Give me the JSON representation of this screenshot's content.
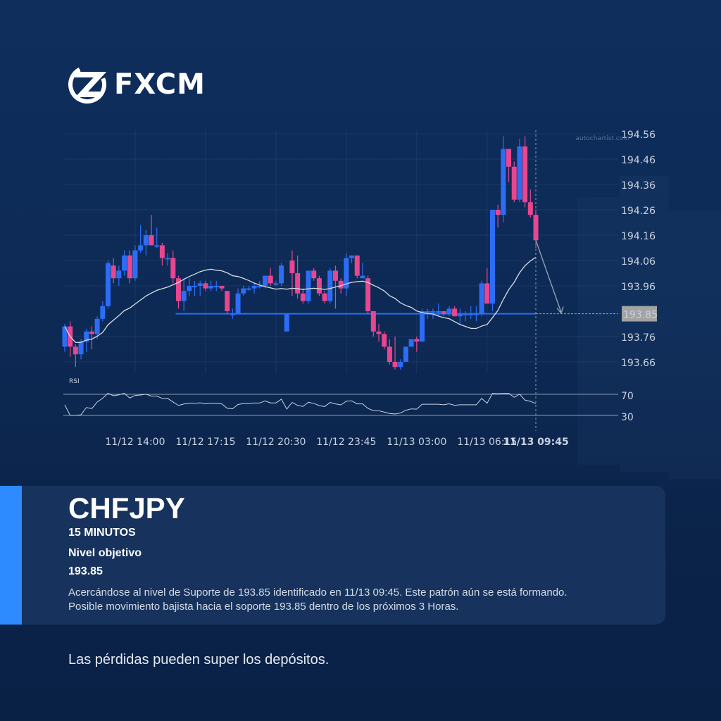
{
  "brand": {
    "name": "FXCM",
    "watermark": "autochartist.com"
  },
  "colors": {
    "bull": "#2d6df6",
    "bear": "#e8468f",
    "support": "#2d6df6",
    "accent": "#2e8bff",
    "ma": "#d8dde6"
  },
  "chart_data": {
    "type": "candlestick",
    "symbol": "CHFJPY",
    "interval": "15 MINUTOS",
    "y_ticks": [
      "194.56",
      "194.46",
      "194.36",
      "194.26",
      "194.16",
      "194.06",
      "193.96",
      "193.76",
      "193.66"
    ],
    "ylim": [
      193.6,
      194.6
    ],
    "x_labels": [
      "11/12 14:00",
      "11/12 17:15",
      "11/12 20:30",
      "11/12 23:45",
      "11/13 03:00",
      "11/13 06:15",
      "11/13 09:45"
    ],
    "x_label_candle_index": [
      13,
      26,
      39,
      52,
      65,
      78,
      87
    ],
    "grid": true,
    "support_level": 193.85,
    "support_label": "193.85",
    "forecast_target": 193.85,
    "indicator_label": "RSI",
    "rsi_levels": [
      "70",
      "30"
    ],
    "candles_ohlc": [
      [
        193.72,
        193.81,
        193.7,
        193.8
      ],
      [
        193.8,
        193.82,
        193.68,
        193.72
      ],
      [
        193.72,
        193.73,
        193.64,
        193.69
      ],
      [
        193.69,
        193.75,
        193.67,
        193.74
      ],
      [
        193.74,
        193.79,
        193.7,
        193.78
      ],
      [
        193.78,
        193.8,
        193.71,
        193.77
      ],
      [
        193.77,
        193.84,
        193.75,
        193.83
      ],
      [
        193.83,
        193.9,
        193.82,
        193.88
      ],
      [
        193.88,
        194.06,
        193.87,
        194.05
      ],
      [
        194.04,
        194.07,
        193.97,
        193.99
      ],
      [
        193.99,
        194.04,
        193.96,
        194.02
      ],
      [
        194.02,
        194.1,
        194.0,
        194.08
      ],
      [
        194.08,
        194.1,
        193.97,
        193.99
      ],
      [
        193.99,
        194.12,
        193.98,
        194.1
      ],
      [
        194.1,
        194.2,
        194.09,
        194.12
      ],
      [
        194.12,
        194.18,
        194.08,
        194.16
      ],
      [
        194.16,
        194.24,
        194.12,
        194.12
      ],
      [
        194.12,
        194.19,
        194.11,
        194.12
      ],
      [
        194.12,
        194.13,
        194.04,
        194.07
      ],
      [
        194.07,
        194.09,
        194.04,
        194.07
      ],
      [
        194.07,
        194.1,
        193.97,
        193.99
      ],
      [
        193.99,
        194.0,
        193.87,
        193.9
      ],
      [
        193.9,
        193.99,
        193.86,
        193.94
      ],
      [
        193.94,
        193.99,
        193.92,
        193.96
      ],
      [
        193.96,
        193.98,
        193.92,
        193.96
      ],
      [
        193.96,
        193.98,
        193.92,
        193.97
      ],
      [
        193.97,
        193.98,
        193.94,
        193.95
      ],
      [
        193.95,
        193.98,
        193.94,
        193.96
      ],
      [
        193.96,
        193.98,
        193.94,
        193.96
      ],
      [
        193.96,
        193.96,
        193.94,
        193.95
      ],
      [
        193.94,
        193.94,
        193.85,
        193.86
      ],
      [
        193.85,
        193.87,
        193.83,
        193.85
      ],
      [
        193.85,
        193.95,
        193.85,
        193.93
      ],
      [
        193.93,
        193.96,
        193.92,
        193.95
      ],
      [
        193.95,
        193.96,
        193.94,
        193.95
      ],
      [
        193.95,
        193.97,
        193.93,
        193.96
      ],
      [
        193.96,
        193.98,
        193.95,
        193.96
      ],
      [
        193.96,
        194.0,
        193.95,
        194.0
      ],
      [
        194.0,
        194.03,
        193.96,
        193.97
      ],
      [
        193.97,
        193.98,
        193.96,
        193.97
      ],
      [
        193.97,
        194.05,
        193.96,
        194.04
      ],
      [
        193.78,
        193.85,
        193.78,
        193.85
      ],
      [
        194.06,
        194.1,
        193.92,
        194.01
      ],
      [
        194.01,
        194.08,
        193.91,
        193.93
      ],
      [
        193.93,
        193.95,
        193.89,
        193.9
      ],
      [
        193.9,
        194.02,
        193.89,
        194.02
      ],
      [
        194.02,
        194.03,
        193.98,
        193.99
      ],
      [
        193.99,
        194.0,
        193.92,
        193.93
      ],
      [
        193.93,
        193.94,
        193.89,
        193.9
      ],
      [
        193.9,
        194.03,
        193.89,
        194.02
      ],
      [
        194.02,
        194.04,
        193.87,
        193.98
      ],
      [
        193.98,
        193.99,
        193.93,
        193.95
      ],
      [
        193.95,
        194.09,
        193.92,
        194.07
      ],
      [
        194.07,
        194.08,
        194.05,
        194.08
      ],
      [
        194.08,
        194.08,
        193.99,
        194.0
      ],
      [
        193.99,
        194.05,
        193.99,
        194.0
      ],
      [
        193.99,
        194.0,
        193.85,
        193.86
      ],
      [
        193.86,
        193.86,
        193.76,
        193.78
      ],
      [
        193.78,
        193.81,
        193.74,
        193.77
      ],
      [
        193.77,
        193.78,
        193.71,
        193.72
      ],
      [
        193.72,
        193.75,
        193.65,
        193.66
      ],
      [
        193.66,
        193.76,
        193.63,
        193.64
      ],
      [
        193.64,
        193.67,
        193.63,
        193.66
      ],
      [
        193.66,
        193.72,
        193.66,
        193.72
      ],
      [
        193.72,
        193.75,
        193.72,
        193.75
      ],
      [
        193.75,
        193.76,
        193.7,
        193.74
      ],
      [
        193.74,
        193.87,
        193.74,
        193.86
      ],
      [
        193.86,
        193.87,
        193.83,
        193.86
      ],
      [
        193.86,
        193.87,
        193.83,
        193.86
      ],
      [
        193.86,
        193.89,
        193.84,
        193.86
      ],
      [
        193.86,
        193.86,
        193.84,
        193.85
      ],
      [
        193.85,
        193.88,
        193.84,
        193.87
      ],
      [
        193.87,
        193.88,
        193.84,
        193.84
      ],
      [
        193.84,
        193.87,
        193.81,
        193.85
      ],
      [
        193.85,
        193.86,
        193.82,
        193.85
      ],
      [
        193.85,
        193.88,
        193.83,
        193.85
      ],
      [
        193.85,
        193.88,
        193.82,
        193.85
      ],
      [
        193.85,
        193.98,
        193.84,
        193.97
      ],
      [
        193.97,
        194.03,
        193.89,
        193.89
      ],
      [
        193.89,
        194.26,
        193.86,
        194.26
      ],
      [
        194.26,
        194.28,
        194.19,
        194.24
      ],
      [
        194.24,
        194.55,
        194.21,
        194.5
      ],
      [
        194.5,
        194.5,
        194.37,
        194.43
      ],
      [
        194.43,
        194.45,
        194.29,
        194.3
      ],
      [
        194.3,
        194.54,
        194.29,
        194.51
      ],
      [
        194.51,
        194.55,
        194.27,
        194.29
      ],
      [
        194.29,
        194.34,
        194.23,
        194.24
      ],
      [
        194.24,
        194.26,
        194.11,
        194.14
      ]
    ]
  },
  "card": {
    "symbol": "CHFJPY",
    "timeframe": "15 MINUTOS",
    "target_label": "Nivel objetivo",
    "target_value": "193.85",
    "description_line1": "Acercándose al nivel de Suporte de 193.85 identificado en 11/13 09:45. Este patrón aún se está formando.",
    "description_line2": "Posible movimiento bajista hacia el soporte 193.85 dentro de los próximos 3 Horas."
  },
  "disclaimer": "Las pérdidas pueden super los depósitos."
}
